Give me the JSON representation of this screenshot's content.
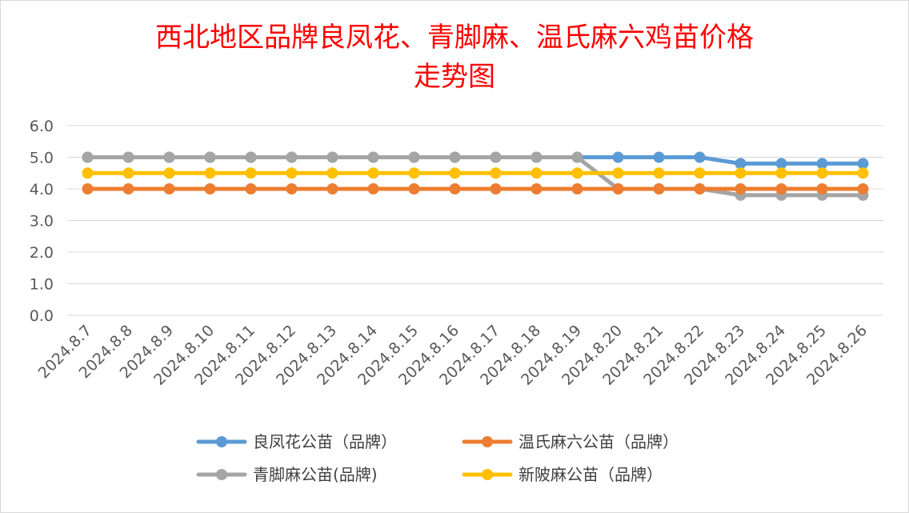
{
  "chart_data": {
    "type": "line",
    "title": "西北地区品牌良凤花、青脚麻、温氏麻六鸡苗价格",
    "subtitle": "走势图",
    "xlabel": "",
    "ylabel": "",
    "ylim": [
      0,
      6
    ],
    "yticks": [
      "0.0",
      "1.0",
      "2.0",
      "3.0",
      "4.0",
      "5.0",
      "6.0"
    ],
    "grid": true,
    "legend_position": "bottom",
    "categories": [
      "2024.8.7",
      "2024.8.8",
      "2024.8.9",
      "2024.8.10",
      "2024.8.11",
      "2024.8.12",
      "2024.8.13",
      "2024.8.14",
      "2024.8.15",
      "2024.8.16",
      "2024.8.17",
      "2024.8.18",
      "2024.8.19",
      "2024.8.20",
      "2024.8.21",
      "2024.8.22",
      "2024.8.23",
      "2024.8.24",
      "2024.8.25",
      "2024.8.26"
    ],
    "series": [
      {
        "name": "良凤花公苗（品牌）",
        "color": "#5b9bd5",
        "values": [
          5.0,
          5.0,
          5.0,
          5.0,
          5.0,
          5.0,
          5.0,
          5.0,
          5.0,
          5.0,
          5.0,
          5.0,
          5.0,
          5.0,
          5.0,
          5.0,
          4.8,
          4.8,
          4.8,
          4.8
        ]
      },
      {
        "name": "温氏麻六公苗（品牌）",
        "color": "#ed7d31",
        "values": [
          4.0,
          4.0,
          4.0,
          4.0,
          4.0,
          4.0,
          4.0,
          4.0,
          4.0,
          4.0,
          4.0,
          4.0,
          4.0,
          4.0,
          4.0,
          4.0,
          4.0,
          4.0,
          4.0,
          4.0
        ]
      },
      {
        "name": "青脚麻公苗(品牌)",
        "color": "#a5a5a5",
        "values": [
          5.0,
          5.0,
          5.0,
          5.0,
          5.0,
          5.0,
          5.0,
          5.0,
          5.0,
          5.0,
          5.0,
          5.0,
          5.0,
          4.0,
          4.0,
          4.0,
          3.8,
          3.8,
          3.8,
          3.8
        ]
      },
      {
        "name": "新陂麻公苗（品牌）",
        "color": "#ffc000",
        "values": [
          4.5,
          4.5,
          4.5,
          4.5,
          4.5,
          4.5,
          4.5,
          4.5,
          4.5,
          4.5,
          4.5,
          4.5,
          4.5,
          4.5,
          4.5,
          4.5,
          4.5,
          4.5,
          4.5,
          4.5
        ]
      }
    ],
    "draw_order": [
      0,
      2,
      1,
      3
    ]
  }
}
